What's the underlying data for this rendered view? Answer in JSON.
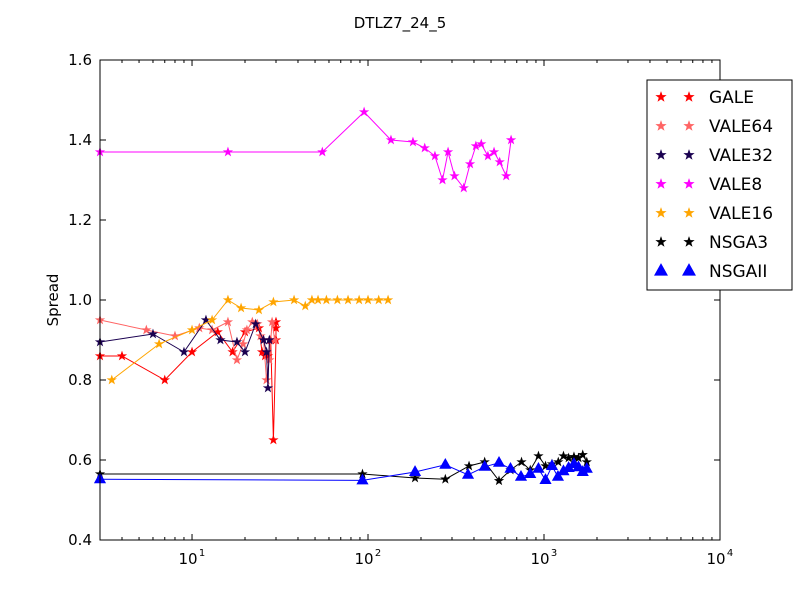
{
  "chart_data": {
    "type": "line",
    "title": "DTLZ7_24_5",
    "xlabel": "",
    "ylabel": "Spread",
    "xscale": "log",
    "xlim": [
      3,
      10000
    ],
    "ylim": [
      0.4,
      1.6
    ],
    "x_ticks": [
      {
        "value": 10,
        "base": "10",
        "exp": "1"
      },
      {
        "value": 100,
        "base": "10",
        "exp": "2"
      },
      {
        "value": 1000,
        "base": "10",
        "exp": "3"
      },
      {
        "value": 10000,
        "base": "10",
        "exp": "4"
      }
    ],
    "y_ticks": [
      {
        "value": 0.4,
        "label": "0.4"
      },
      {
        "value": 0.6,
        "label": "0.6"
      },
      {
        "value": 0.8,
        "label": "0.8"
      },
      {
        "value": 1.0,
        "label": "1.0"
      },
      {
        "value": 1.2,
        "label": "1.2"
      },
      {
        "value": 1.4,
        "label": "1.4"
      },
      {
        "value": 1.6,
        "label": "1.6"
      }
    ],
    "grid": false,
    "legend_position": "top-right",
    "series": [
      {
        "name": "GALE",
        "color": "#ff0000",
        "marker": "star",
        "points": [
          [
            3,
            0.86
          ],
          [
            4,
            0.86
          ],
          [
            7,
            0.8
          ],
          [
            10,
            0.87
          ],
          [
            14,
            0.92
          ],
          [
            17,
            0.87
          ],
          [
            20,
            0.92
          ],
          [
            24,
            0.93
          ],
          [
            25,
            0.87
          ],
          [
            26,
            0.86
          ],
          [
            27,
            0.86
          ],
          [
            28,
            0.9
          ],
          [
            29,
            0.65
          ],
          [
            30,
            0.9
          ],
          [
            30,
            0.93
          ],
          [
            30,
            0.945
          ]
        ]
      },
      {
        "name": "VALE64",
        "color": "#ff6464",
        "marker": "star",
        "points": [
          [
            3,
            0.95
          ],
          [
            5.5,
            0.925
          ],
          [
            8,
            0.91
          ],
          [
            11,
            0.93
          ],
          [
            13,
            0.925
          ],
          [
            16,
            0.945
          ],
          [
            18,
            0.85
          ],
          [
            19.5,
            0.89
          ],
          [
            20.5,
            0.925
          ],
          [
            22,
            0.945
          ],
          [
            23.5,
            0.94
          ],
          [
            24.5,
            0.91
          ],
          [
            25.5,
            0.9
          ],
          [
            26.5,
            0.8
          ],
          [
            27.5,
            0.85
          ],
          [
            28.5,
            0.945
          ],
          [
            29.5,
            0.9
          ]
        ]
      },
      {
        "name": "VALE32",
        "color": "#1a0050",
        "marker": "star",
        "points": [
          [
            3,
            0.895
          ],
          [
            6,
            0.915
          ],
          [
            9,
            0.87
          ],
          [
            12,
            0.95
          ],
          [
            14.5,
            0.9
          ],
          [
            18,
            0.895
          ],
          [
            20,
            0.87
          ],
          [
            23,
            0.94
          ],
          [
            25.5,
            0.9
          ],
          [
            26.5,
            0.87
          ],
          [
            27,
            0.78
          ],
          [
            27.5,
            0.9
          ]
        ]
      },
      {
        "name": "VALE8",
        "color": "#ff00ff",
        "marker": "star",
        "points": [
          [
            3,
            1.37
          ],
          [
            16,
            1.37
          ],
          [
            55,
            1.37
          ],
          [
            95,
            1.47
          ],
          [
            135,
            1.4
          ],
          [
            180,
            1.395
          ],
          [
            210,
            1.38
          ],
          [
            240,
            1.36
          ],
          [
            265,
            1.3
          ],
          [
            285,
            1.37
          ],
          [
            310,
            1.31
          ],
          [
            350,
            1.28
          ],
          [
            380,
            1.34
          ],
          [
            410,
            1.385
          ],
          [
            440,
            1.39
          ],
          [
            480,
            1.36
          ],
          [
            520,
            1.37
          ],
          [
            560,
            1.345
          ],
          [
            610,
            1.31
          ],
          [
            650,
            1.4
          ]
        ]
      },
      {
        "name": "VALE16",
        "color": "#ffa500",
        "marker": "star",
        "points": [
          [
            3.5,
            0.8
          ],
          [
            6.5,
            0.89
          ],
          [
            10,
            0.925
          ],
          [
            13,
            0.95
          ],
          [
            16,
            1.0
          ],
          [
            19,
            0.98
          ],
          [
            24,
            0.975
          ],
          [
            29,
            0.995
          ],
          [
            38,
            1.0
          ],
          [
            44,
            0.985
          ],
          [
            48,
            1.0
          ],
          [
            52,
            1.0
          ],
          [
            58,
            1.0
          ],
          [
            67,
            1.0
          ],
          [
            77,
            1.0
          ],
          [
            89,
            1.0
          ],
          [
            100,
            1.0
          ],
          [
            115,
            1.0
          ],
          [
            130,
            1.0
          ]
        ]
      },
      {
        "name": "NSGA3",
        "color": "#000000",
        "marker": "star",
        "points": [
          [
            3,
            0.565
          ],
          [
            93,
            0.565
          ],
          [
            185,
            0.555
          ],
          [
            275,
            0.552
          ],
          [
            375,
            0.585
          ],
          [
            460,
            0.595
          ],
          [
            555,
            0.548
          ],
          [
            645,
            0.575
          ],
          [
            745,
            0.595
          ],
          [
            835,
            0.575
          ],
          [
            930,
            0.61
          ],
          [
            1020,
            0.585
          ],
          [
            1110,
            0.59
          ],
          [
            1205,
            0.595
          ],
          [
            1290,
            0.61
          ],
          [
            1380,
            0.605
          ],
          [
            1480,
            0.608
          ],
          [
            1570,
            0.605
          ],
          [
            1660,
            0.613
          ],
          [
            1750,
            0.595
          ]
        ]
      },
      {
        "name": "NSGAII",
        "color": "#0000ff",
        "marker": "triangle",
        "points": [
          [
            3,
            0.552
          ],
          [
            93,
            0.549
          ],
          [
            185,
            0.57
          ],
          [
            275,
            0.588
          ],
          [
            370,
            0.563
          ],
          [
            460,
            0.583
          ],
          [
            555,
            0.593
          ],
          [
            645,
            0.578
          ],
          [
            740,
            0.558
          ],
          [
            835,
            0.565
          ],
          [
            930,
            0.578
          ],
          [
            1020,
            0.55
          ],
          [
            1110,
            0.585
          ],
          [
            1200,
            0.558
          ],
          [
            1290,
            0.572
          ],
          [
            1380,
            0.58
          ],
          [
            1480,
            0.59
          ],
          [
            1570,
            0.582
          ],
          [
            1660,
            0.57
          ],
          [
            1750,
            0.578
          ]
        ]
      }
    ]
  }
}
